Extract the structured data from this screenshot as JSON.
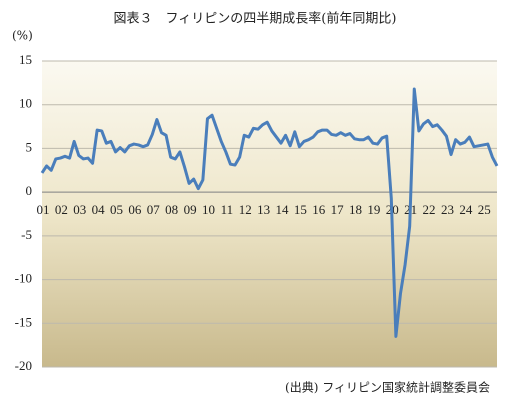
{
  "chart_data": {
    "type": "line",
    "title": "図表３　フィリピンの四半期成長率(前年同期比)",
    "y_label": "(%)",
    "source": "(出典) フィリピン国家統計調整委員会",
    "categories": [
      "01",
      null,
      null,
      null,
      "02",
      null,
      null,
      null,
      "03",
      null,
      null,
      null,
      "04",
      null,
      null,
      null,
      "05",
      null,
      null,
      null,
      "06",
      null,
      null,
      null,
      "07",
      null,
      null,
      null,
      "08",
      null,
      null,
      null,
      "09",
      null,
      null,
      null,
      "10",
      null,
      null,
      null,
      "11",
      null,
      null,
      null,
      "12",
      null,
      null,
      null,
      "13",
      null,
      null,
      null,
      "14",
      null,
      null,
      null,
      "15",
      null,
      null,
      null,
      "16",
      null,
      null,
      null,
      "17",
      null,
      null,
      null,
      "18",
      null,
      null,
      null,
      "19",
      null,
      null,
      null,
      "20",
      null,
      null,
      null,
      "21",
      null,
      null,
      null,
      "22",
      null,
      null,
      null,
      "23",
      null,
      null,
      null,
      "24",
      null,
      null,
      null,
      "25",
      null,
      null,
      null
    ],
    "values": [
      2.2,
      3.0,
      2.5,
      3.8,
      3.9,
      4.1,
      3.9,
      5.8,
      4.2,
      3.8,
      3.9,
      3.3,
      7.1,
      7.0,
      5.6,
      5.8,
      4.6,
      5.1,
      4.6,
      5.3,
      5.5,
      5.4,
      5.2,
      5.4,
      6.6,
      8.3,
      6.8,
      6.5,
      4.0,
      3.8,
      4.6,
      2.9,
      1.0,
      1.5,
      0.4,
      1.4,
      8.4,
      8.8,
      7.3,
      5.8,
      4.6,
      3.2,
      3.1,
      4.0,
      6.5,
      6.3,
      7.3,
      7.2,
      7.7,
      8.0,
      7.0,
      6.3,
      5.6,
      6.5,
      5.3,
      6.9,
      5.2,
      5.8,
      6.0,
      6.3,
      6.9,
      7.1,
      7.1,
      6.6,
      6.5,
      6.8,
      6.5,
      6.7,
      6.1,
      6.0,
      6.0,
      6.3,
      5.6,
      5.5,
      6.2,
      6.4,
      -0.7,
      -16.5,
      -11.6,
      -8.3,
      -3.9,
      11.8,
      7.0,
      7.8,
      8.2,
      7.5,
      7.7,
      7.1,
      6.4,
      4.3,
      6.0,
      5.5,
      5.7,
      6.3,
      5.2,
      5.3,
      5.4,
      5.5,
      4.0,
      3.0
    ],
    "color": "#4a7ebb",
    "ylim": [
      -20,
      15
    ],
    "yticks": [
      -20,
      -15,
      -10,
      -5,
      0,
      5,
      10,
      15
    ],
    "grid": true
  }
}
